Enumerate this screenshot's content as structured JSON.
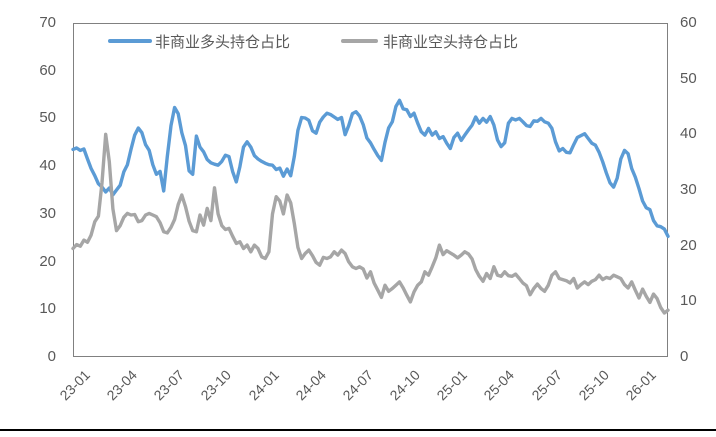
{
  "chart_data": {
    "type": "line",
    "title": "",
    "legend_position": "top",
    "grid": "none",
    "n_points": 165,
    "x_tick_labels": [
      "23-01",
      "23-04",
      "23-07",
      "23-10",
      "24-01",
      "24-04",
      "24-07",
      "24-10",
      "25-01",
      "25-04",
      "25-07",
      "25-10",
      "26-01"
    ],
    "x_tick_weeks": [
      0,
      13,
      26,
      39,
      52,
      65,
      78,
      91,
      104,
      117,
      130,
      143,
      156
    ],
    "axes": {
      "left": {
        "min": 0,
        "max": 70,
        "ticks": [
          0,
          10,
          20,
          30,
          40,
          50,
          60,
          70
        ]
      },
      "right": {
        "min": 0,
        "max": 60,
        "ticks": [
          0,
          10,
          20,
          30,
          40,
          50,
          60
        ]
      }
    },
    "series": [
      {
        "name": "非商业多头持仓占比",
        "color": "#5B9BD5",
        "axis": "left",
        "values": [
          43.5,
          43.8,
          43.3,
          43.6,
          41.5,
          39.5,
          38.0,
          36.3,
          35.6,
          34.6,
          35.4,
          34.0,
          35.0,
          36.0,
          38.8,
          40.3,
          43.5,
          46.5,
          48.0,
          47.0,
          44.5,
          43.3,
          40.3,
          38.3,
          38.9,
          34.8,
          42.0,
          48.5,
          52.3,
          51.0,
          47.0,
          44.3,
          39.0,
          38.3,
          46.3,
          44.0,
          43.0,
          41.4,
          40.7,
          40.4,
          40.2,
          41.0,
          42.3,
          42.0,
          38.9,
          36.7,
          39.9,
          44.0,
          45.1,
          44.0,
          42.2,
          41.5,
          41.0,
          40.6,
          40.3,
          40.2,
          39.3,
          39.6,
          37.9,
          39.4,
          38.0,
          42.0,
          47.5,
          50.2,
          50.1,
          49.6,
          47.4,
          46.9,
          49.2,
          50.3,
          51.1,
          50.8,
          50.3,
          49.8,
          50.2,
          46.6,
          48.5,
          51.0,
          51.4,
          50.5,
          48.7,
          45.9,
          44.9,
          43.5,
          42.2,
          41.2,
          45.0,
          48.0,
          49.3,
          52.5,
          53.8,
          52.0,
          51.8,
          50.4,
          51.1,
          49.0,
          47.2,
          46.5,
          47.9,
          46.5,
          47.2,
          45.8,
          46.2,
          44.8,
          43.7,
          46.0,
          46.9,
          45.4,
          46.5,
          47.6,
          48.6,
          50.3,
          49.0,
          50.0,
          49.2,
          50.4,
          48.6,
          45.5,
          44.1,
          44.9,
          49.0,
          50.0,
          49.7,
          50.0,
          49.3,
          48.5,
          48.3,
          49.5,
          49.4,
          50.0,
          49.3,
          49.0,
          47.9,
          45.1,
          43.2,
          43.7,
          42.9,
          42.8,
          44.5,
          46.0,
          46.4,
          46.8,
          45.8,
          44.8,
          44.4,
          42.9,
          40.9,
          38.6,
          36.5,
          35.6,
          37.5,
          41.5,
          43.3,
          42.6,
          39.5,
          37.7,
          35.3,
          32.7,
          31.3,
          30.9,
          28.6,
          27.5,
          27.3,
          26.8,
          25.3
        ]
      },
      {
        "name": "非商业空头持仓占比",
        "color": "#A6A6A6",
        "axis": "right",
        "values": [
          19.5,
          20.2,
          19.9,
          21.0,
          20.6,
          21.9,
          24.3,
          25.3,
          31.3,
          40.0,
          35.1,
          26.6,
          22.7,
          23.6,
          25.1,
          25.8,
          25.5,
          25.6,
          24.3,
          24.5,
          25.5,
          25.8,
          25.5,
          25.2,
          24.1,
          22.5,
          22.3,
          23.3,
          24.7,
          27.4,
          29.1,
          27.0,
          24.4,
          22.7,
          22.5,
          25.5,
          23.7,
          26.7,
          24.5,
          30.4,
          25.7,
          23.6,
          22.9,
          23.1,
          21.7,
          20.4,
          20.7,
          19.5,
          20.1,
          18.9,
          20.1,
          19.5,
          18.0,
          17.7,
          18.9,
          25.7,
          28.8,
          28.0,
          25.7,
          29.1,
          27.7,
          24.0,
          19.7,
          17.7,
          18.6,
          19.2,
          18.2,
          17.0,
          16.5,
          17.9,
          17.7,
          18.0,
          18.9,
          18.3,
          19.2,
          18.6,
          17.1,
          16.2,
          15.9,
          16.2,
          15.8,
          14.2,
          15.3,
          13.3,
          12.0,
          10.7,
          12.9,
          11.8,
          12.3,
          12.9,
          13.5,
          12.4,
          11.1,
          9.9,
          11.7,
          12.9,
          13.5,
          15.3,
          14.7,
          16.2,
          17.8,
          20.1,
          18.4,
          19.1,
          18.7,
          18.3,
          17.8,
          18.3,
          18.9,
          18.5,
          17.6,
          15.7,
          14.5,
          13.6,
          15.0,
          14.1,
          16.2,
          14.7,
          14.5,
          15.3,
          14.6,
          14.5,
          14.9,
          14.1,
          13.3,
          12.8,
          11.2,
          12.3,
          13.1,
          12.3,
          11.8,
          12.9,
          14.7,
          15.3,
          14.1,
          13.9,
          13.7,
          13.3,
          14.1,
          12.4,
          13.0,
          13.5,
          13.0,
          13.6,
          13.9,
          14.7,
          13.9,
          14.3,
          14.1,
          14.7,
          14.4,
          14.1,
          13.0,
          12.4,
          13.5,
          12.0,
          10.6,
          12.2,
          10.9,
          9.8,
          11.3,
          10.5,
          8.9,
          7.9,
          8.4
        ]
      }
    ],
    "line_width": 3.4,
    "text_color": "#595959",
    "border_color": "#808080"
  }
}
